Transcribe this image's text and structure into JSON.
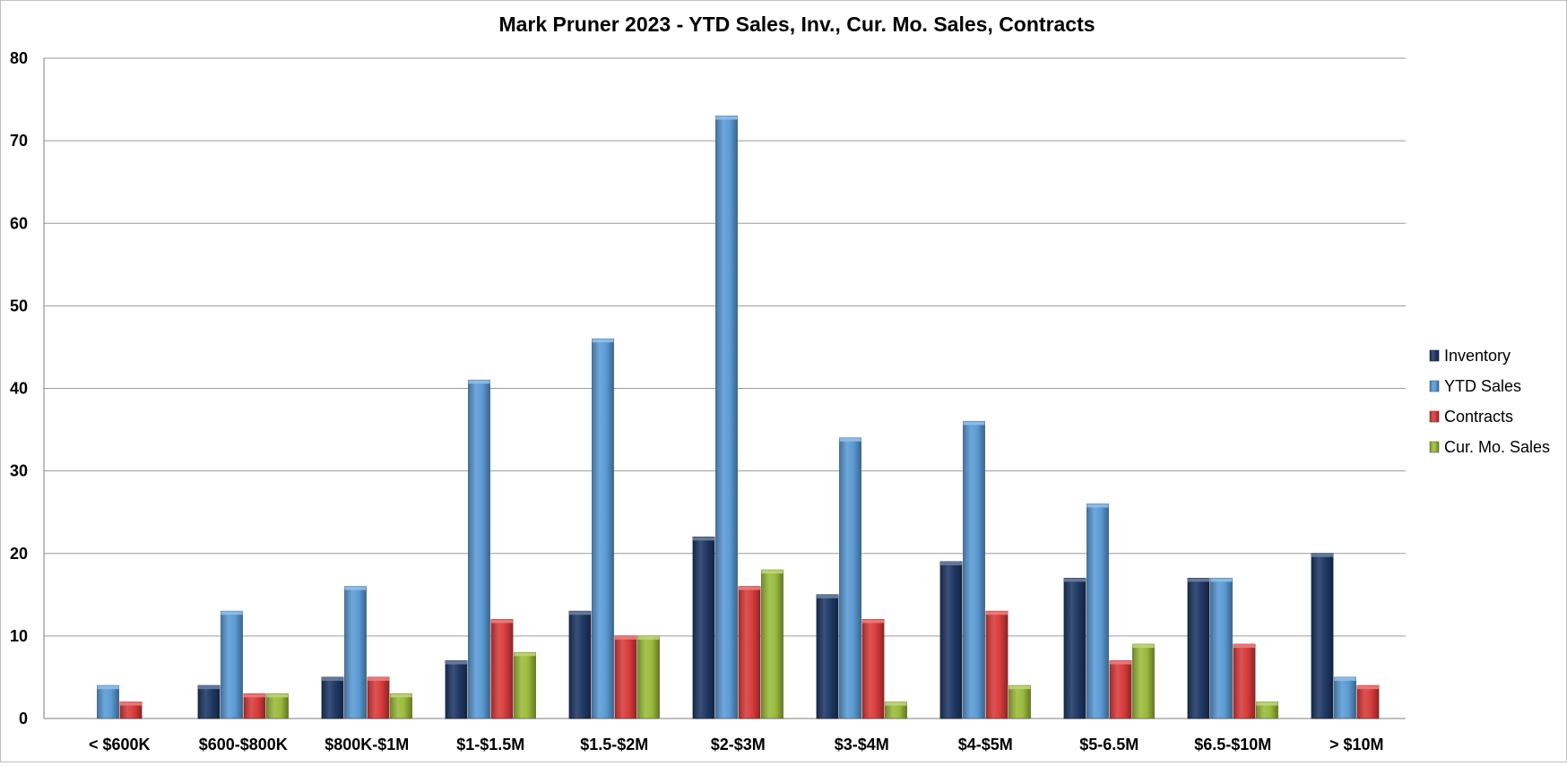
{
  "chart_data": {
    "type": "bar",
    "title": "Mark Pruner 2023 - YTD Sales, Inv., Cur. Mo. Sales, Contracts",
    "xlabel": "",
    "ylabel": "",
    "ylim": [
      0,
      80
    ],
    "yticks": [
      0,
      10,
      20,
      30,
      40,
      50,
      60,
      70,
      80
    ],
    "grid": true,
    "legend_position": "right",
    "categories": [
      "< $600K",
      "$600-$800K",
      "$800K-$1M",
      "$1-$1.5M",
      "$1.5-$2M",
      "$2-$3M",
      "$3-$4M",
      "$4-$5M",
      "$5-6.5M",
      "$6.5-$10M",
      "> $10M"
    ],
    "series": [
      {
        "name": "Inventory",
        "color": "#1f3864",
        "values": [
          0,
          4,
          5,
          7,
          13,
          22,
          15,
          19,
          17,
          17,
          20
        ]
      },
      {
        "name": "YTD Sales",
        "color": "#5b9bd5",
        "values": [
          4,
          13,
          16,
          41,
          46,
          73,
          34,
          36,
          26,
          17,
          5
        ]
      },
      {
        "name": "Contracts",
        "color": "#d83b3b",
        "values": [
          2,
          3,
          5,
          12,
          10,
          16,
          12,
          13,
          7,
          9,
          4
        ]
      },
      {
        "name": "Cur. Mo. Sales",
        "color": "#9bbb3b",
        "values": [
          0,
          3,
          3,
          8,
          10,
          18,
          2,
          4,
          9,
          2,
          0
        ]
      }
    ]
  }
}
